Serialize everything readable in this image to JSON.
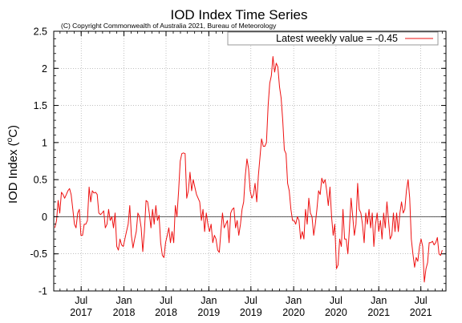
{
  "chart_data": {
    "type": "line",
    "title": "IOD Index Time Series",
    "subtitle": "(C) Copyright Commonwealth of Australia 2021, Bureau of Meteorology",
    "ylabel_main": "IOD Index (",
    "ylabel_sup": "o",
    "ylabel_unit": "C)",
    "xlabel": "",
    "ylim": [
      -1,
      2.5
    ],
    "yticks": [
      -1,
      -0.5,
      0,
      0.5,
      1,
      1.5,
      2,
      2.5
    ],
    "ytick_labels": [
      "-1",
      "-0.5",
      "0",
      "0.5",
      "1",
      "1.5",
      "2",
      "2.5"
    ],
    "xlim": [
      "2017-03-05",
      "2021-10-17"
    ],
    "xticks": [
      {
        "date": "2017-07-01",
        "month": "Jul",
        "year": "2017"
      },
      {
        "date": "2018-01-01",
        "month": "Jan",
        "year": "2018"
      },
      {
        "date": "2018-07-01",
        "month": "Jul",
        "year": "2018"
      },
      {
        "date": "2019-01-01",
        "month": "Jan",
        "year": "2019"
      },
      {
        "date": "2019-07-01",
        "month": "Jul",
        "year": "2019"
      },
      {
        "date": "2020-01-01",
        "month": "Jan",
        "year": "2020"
      },
      {
        "date": "2020-07-01",
        "month": "Jul",
        "year": "2020"
      },
      {
        "date": "2021-01-01",
        "month": "Jan",
        "year": "2021"
      },
      {
        "date": "2021-07-01",
        "month": "Jul",
        "year": "2021"
      }
    ],
    "grid": true,
    "legend_position": "top-right",
    "series": [
      {
        "name": "Latest weekly value = -0.45",
        "color": "#ee1111",
        "points": [
          [
            "2017-03-10",
            -0.15
          ],
          [
            "2017-03-17",
            -0.05
          ],
          [
            "2017-03-24",
            0.22
          ],
          [
            "2017-03-31",
            0.05
          ],
          [
            "2017-04-07",
            0.33
          ],
          [
            "2017-04-14",
            0.3
          ],
          [
            "2017-04-21",
            0.25
          ],
          [
            "2017-04-28",
            0.3
          ],
          [
            "2017-05-05",
            0.35
          ],
          [
            "2017-05-12",
            0.38
          ],
          [
            "2017-05-19",
            0.3
          ],
          [
            "2017-05-26",
            0.1
          ],
          [
            "2017-06-02",
            -0.1
          ],
          [
            "2017-06-09",
            -0.15
          ],
          [
            "2017-06-16",
            0.05
          ],
          [
            "2017-06-23",
            0.1
          ],
          [
            "2017-06-30",
            -0.25
          ],
          [
            "2017-07-07",
            -0.25
          ],
          [
            "2017-07-14",
            -0.1
          ],
          [
            "2017-07-21",
            -0.1
          ],
          [
            "2017-07-28",
            -0.05
          ],
          [
            "2017-08-04",
            0.4
          ],
          [
            "2017-08-11",
            0.2
          ],
          [
            "2017-08-18",
            0.35
          ],
          [
            "2017-08-25",
            0.32
          ],
          [
            "2017-09-01",
            0.33
          ],
          [
            "2017-09-08",
            0.3
          ],
          [
            "2017-09-15",
            0.05
          ],
          [
            "2017-09-22",
            0.03
          ],
          [
            "2017-09-29",
            0.05
          ],
          [
            "2017-10-06",
            0.08
          ],
          [
            "2017-10-13",
            -0.15
          ],
          [
            "2017-10-20",
            -0.1
          ],
          [
            "2017-10-27",
            0.1
          ],
          [
            "2017-11-03",
            -0.05
          ],
          [
            "2017-11-10",
            0.0
          ],
          [
            "2017-11-17",
            -0.15
          ],
          [
            "2017-11-24",
            0.05
          ],
          [
            "2017-12-01",
            -0.4
          ],
          [
            "2017-12-08",
            -0.45
          ],
          [
            "2017-12-15",
            -0.3
          ],
          [
            "2017-12-22",
            -0.38
          ],
          [
            "2017-12-29",
            -0.4
          ],
          [
            "2018-01-05",
            -0.3
          ],
          [
            "2018-01-12",
            -0.2
          ],
          [
            "2018-01-19",
            -0.1
          ],
          [
            "2018-01-26",
            0.15
          ],
          [
            "2018-02-02",
            -0.25
          ],
          [
            "2018-02-09",
            -0.42
          ],
          [
            "2018-02-16",
            -0.3
          ],
          [
            "2018-02-23",
            -0.2
          ],
          [
            "2018-03-02",
            0.05
          ],
          [
            "2018-03-09",
            0.0
          ],
          [
            "2018-03-16",
            -0.15
          ],
          [
            "2018-03-23",
            -0.47
          ],
          [
            "2018-03-30",
            -0.2
          ],
          [
            "2018-04-06",
            0.22
          ],
          [
            "2018-04-13",
            0.2
          ],
          [
            "2018-04-20",
            0.05
          ],
          [
            "2018-04-27",
            -0.15
          ],
          [
            "2018-05-04",
            0.1
          ],
          [
            "2018-05-11",
            -0.1
          ],
          [
            "2018-05-18",
            0.15
          ],
          [
            "2018-05-25",
            -0.05
          ],
          [
            "2018-06-01",
            0.02
          ],
          [
            "2018-06-08",
            -0.35
          ],
          [
            "2018-06-15",
            -0.52
          ],
          [
            "2018-06-22",
            -0.55
          ],
          [
            "2018-06-29",
            -0.35
          ],
          [
            "2018-07-06",
            -0.25
          ],
          [
            "2018-07-13",
            -0.15
          ],
          [
            "2018-07-20",
            -0.35
          ],
          [
            "2018-07-27",
            -0.2
          ],
          [
            "2018-08-03",
            -0.35
          ],
          [
            "2018-08-10",
            0.15
          ],
          [
            "2018-08-17",
            0.0
          ],
          [
            "2018-08-24",
            0.35
          ],
          [
            "2018-08-31",
            0.75
          ],
          [
            "2018-09-07",
            0.85
          ],
          [
            "2018-09-14",
            0.86
          ],
          [
            "2018-09-21",
            0.85
          ],
          [
            "2018-09-28",
            0.25
          ],
          [
            "2018-10-05",
            0.35
          ],
          [
            "2018-10-12",
            0.6
          ],
          [
            "2018-10-19",
            0.35
          ],
          [
            "2018-10-26",
            0.5
          ],
          [
            "2018-11-02",
            0.4
          ],
          [
            "2018-11-09",
            0.3
          ],
          [
            "2018-11-16",
            0.25
          ],
          [
            "2018-11-23",
            0.2
          ],
          [
            "2018-11-30",
            -0.05
          ],
          [
            "2018-12-07",
            0.1
          ],
          [
            "2018-12-14",
            -0.2
          ],
          [
            "2018-12-21",
            0.05
          ],
          [
            "2018-12-28",
            -0.1
          ],
          [
            "2019-01-04",
            -0.2
          ],
          [
            "2019-01-11",
            -0.1
          ],
          [
            "2019-01-18",
            -0.35
          ],
          [
            "2019-01-25",
            -0.25
          ],
          [
            "2019-02-01",
            -0.3
          ],
          [
            "2019-02-08",
            -0.45
          ],
          [
            "2019-02-15",
            -0.48
          ],
          [
            "2019-02-22",
            -0.2
          ],
          [
            "2019-03-01",
            0.05
          ],
          [
            "2019-03-08",
            -0.15
          ],
          [
            "2019-03-15",
            -0.1
          ],
          [
            "2019-03-22",
            -0.05
          ],
          [
            "2019-03-29",
            -0.35
          ],
          [
            "2019-04-05",
            0.05
          ],
          [
            "2019-04-12",
            0.1
          ],
          [
            "2019-04-19",
            0.12
          ],
          [
            "2019-04-26",
            -0.15
          ],
          [
            "2019-05-03",
            -0.05
          ],
          [
            "2019-05-10",
            -0.25
          ],
          [
            "2019-05-17",
            -0.1
          ],
          [
            "2019-05-24",
            0.1
          ],
          [
            "2019-05-31",
            0.2
          ],
          [
            "2019-06-07",
            0.55
          ],
          [
            "2019-06-14",
            0.78
          ],
          [
            "2019-06-21",
            0.65
          ],
          [
            "2019-06-28",
            0.35
          ],
          [
            "2019-07-05",
            0.25
          ],
          [
            "2019-07-12",
            0.3
          ],
          [
            "2019-07-19",
            0.45
          ],
          [
            "2019-07-26",
            0.2
          ],
          [
            "2019-08-02",
            0.55
          ],
          [
            "2019-08-09",
            0.8
          ],
          [
            "2019-08-16",
            1.05
          ],
          [
            "2019-08-23",
            0.95
          ],
          [
            "2019-08-30",
            0.95
          ],
          [
            "2019-09-06",
            1.0
          ],
          [
            "2019-09-13",
            1.5
          ],
          [
            "2019-09-20",
            1.8
          ],
          [
            "2019-09-27",
            1.9
          ],
          [
            "2019-10-04",
            2.16
          ],
          [
            "2019-10-11",
            1.95
          ],
          [
            "2019-10-18",
            2.07
          ],
          [
            "2019-10-25",
            2.02
          ],
          [
            "2019-11-01",
            1.75
          ],
          [
            "2019-11-08",
            1.6
          ],
          [
            "2019-11-15",
            1.3
          ],
          [
            "2019-11-22",
            0.9
          ],
          [
            "2019-11-29",
            0.85
          ],
          [
            "2019-12-06",
            0.45
          ],
          [
            "2019-12-13",
            0.35
          ],
          [
            "2019-12-20",
            0.1
          ],
          [
            "2019-12-27",
            -0.05
          ],
          [
            "2020-01-03",
            -0.05
          ],
          [
            "2020-01-10",
            -0.1
          ],
          [
            "2020-01-17",
            0.0
          ],
          [
            "2020-01-24",
            -0.05
          ],
          [
            "2020-01-31",
            -0.3
          ],
          [
            "2020-02-07",
            -0.2
          ],
          [
            "2020-02-14",
            -0.3
          ],
          [
            "2020-02-21",
            0.1
          ],
          [
            "2020-02-28",
            -0.1
          ],
          [
            "2020-03-06",
            0.25
          ],
          [
            "2020-03-13",
            0.05
          ],
          [
            "2020-03-20",
            0.0
          ],
          [
            "2020-03-27",
            -0.25
          ],
          [
            "2020-04-03",
            -0.1
          ],
          [
            "2020-04-10",
            0.1
          ],
          [
            "2020-04-17",
            0.35
          ],
          [
            "2020-04-24",
            0.3
          ],
          [
            "2020-05-01",
            0.52
          ],
          [
            "2020-05-08",
            0.45
          ],
          [
            "2020-05-15",
            0.5
          ],
          [
            "2020-05-22",
            0.35
          ],
          [
            "2020-05-29",
            0.15
          ],
          [
            "2020-06-05",
            0.4
          ],
          [
            "2020-06-12",
            0.0
          ],
          [
            "2020-06-19",
            -0.25
          ],
          [
            "2020-06-26",
            -0.1
          ],
          [
            "2020-07-03",
            -0.7
          ],
          [
            "2020-07-10",
            -0.65
          ],
          [
            "2020-07-17",
            -0.3
          ],
          [
            "2020-07-24",
            -0.4
          ],
          [
            "2020-07-31",
            0.1
          ],
          [
            "2020-08-07",
            -0.3
          ],
          [
            "2020-08-14",
            -0.3
          ],
          [
            "2020-08-21",
            -0.5
          ],
          [
            "2020-08-28",
            -0.15
          ],
          [
            "2020-09-04",
            0.25
          ],
          [
            "2020-09-11",
            0.0
          ],
          [
            "2020-09-18",
            -0.25
          ],
          [
            "2020-09-25",
            -0.1
          ],
          [
            "2020-10-02",
            0.45
          ],
          [
            "2020-10-09",
            0.1
          ],
          [
            "2020-10-16",
            0.05
          ],
          [
            "2020-10-23",
            -0.1
          ],
          [
            "2020-10-30",
            -0.35
          ],
          [
            "2020-11-06",
            0.05
          ],
          [
            "2020-11-13",
            -0.1
          ],
          [
            "2020-11-20",
            0.1
          ],
          [
            "2020-11-27",
            -0.15
          ],
          [
            "2020-12-04",
            0.05
          ],
          [
            "2020-12-11",
            -0.4
          ],
          [
            "2020-12-18",
            -0.1
          ],
          [
            "2020-12-25",
            0.05
          ],
          [
            "2021-01-01",
            -0.2
          ],
          [
            "2021-01-08",
            -0.05
          ],
          [
            "2021-01-15",
            -0.3
          ],
          [
            "2021-01-22",
            0.05
          ],
          [
            "2021-01-29",
            -0.15
          ],
          [
            "2021-02-05",
            0.2
          ],
          [
            "2021-02-12",
            -0.05
          ],
          [
            "2021-02-19",
            -0.3
          ],
          [
            "2021-02-26",
            -0.25
          ],
          [
            "2021-03-05",
            0.05
          ],
          [
            "2021-03-12",
            -0.2
          ],
          [
            "2021-03-19",
            0.05
          ],
          [
            "2021-03-26",
            -0.2
          ],
          [
            "2021-04-02",
            0.05
          ],
          [
            "2021-04-09",
            0.2
          ],
          [
            "2021-04-16",
            0.05
          ],
          [
            "2021-04-23",
            0.1
          ],
          [
            "2021-04-30",
            0.35
          ],
          [
            "2021-05-07",
            0.5
          ],
          [
            "2021-05-14",
            0.25
          ],
          [
            "2021-05-21",
            -0.3
          ],
          [
            "2021-05-28",
            -0.5
          ],
          [
            "2021-06-04",
            -0.68
          ],
          [
            "2021-06-11",
            -0.55
          ],
          [
            "2021-06-18",
            -0.6
          ],
          [
            "2021-06-25",
            -0.4
          ],
          [
            "2021-07-02",
            -0.3
          ],
          [
            "2021-07-09",
            -0.4
          ],
          [
            "2021-07-16",
            -0.88
          ],
          [
            "2021-07-23",
            -0.7
          ],
          [
            "2021-07-30",
            -0.62
          ],
          [
            "2021-08-06",
            -0.35
          ],
          [
            "2021-08-13",
            -0.35
          ],
          [
            "2021-08-20",
            -0.33
          ],
          [
            "2021-08-27",
            -0.38
          ],
          [
            "2021-09-03",
            -0.35
          ],
          [
            "2021-09-10",
            -0.28
          ],
          [
            "2021-09-17",
            -0.5
          ],
          [
            "2021-09-24",
            -0.52
          ],
          [
            "2021-10-01",
            -0.45
          ]
        ]
      }
    ]
  }
}
